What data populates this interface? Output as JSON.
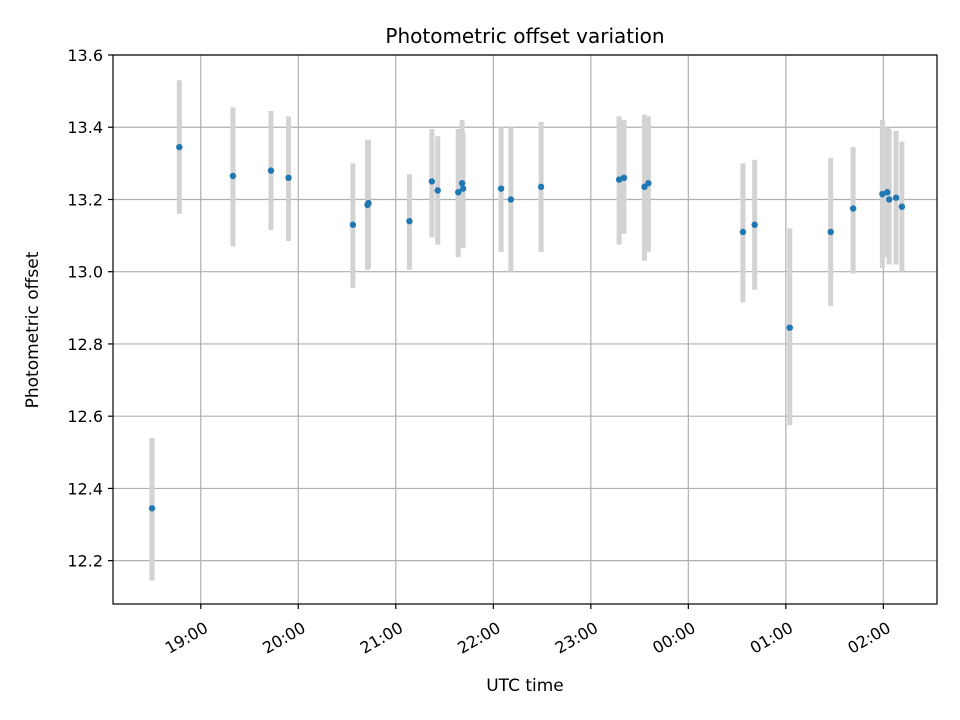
{
  "chart_data": {
    "type": "scatter",
    "title": "Photometric offset variation",
    "xlabel": "UTC time",
    "ylabel": "Photometric offset",
    "grid": true,
    "xlim": [
      18.1,
      26.55
    ],
    "ylim": [
      12.08,
      13.6
    ],
    "x_ticks": [
      {
        "value": 19.0,
        "label": "19:00"
      },
      {
        "value": 20.0,
        "label": "20:00"
      },
      {
        "value": 21.0,
        "label": "21:00"
      },
      {
        "value": 22.0,
        "label": "22:00"
      },
      {
        "value": 23.0,
        "label": "23:00"
      },
      {
        "value": 24.0,
        "label": "00:00"
      },
      {
        "value": 25.0,
        "label": "01:00"
      },
      {
        "value": 26.0,
        "label": "02:00"
      }
    ],
    "y_ticks": [
      {
        "value": 12.2,
        "label": "12.2"
      },
      {
        "value": 12.4,
        "label": "12.4"
      },
      {
        "value": 12.6,
        "label": "12.6"
      },
      {
        "value": 12.8,
        "label": "12.8"
      },
      {
        "value": 13.0,
        "label": "13.0"
      },
      {
        "value": 13.2,
        "label": "13.2"
      },
      {
        "value": 13.4,
        "label": "13.4"
      },
      {
        "value": 13.6,
        "label": "13.6"
      }
    ],
    "colors": {
      "point": "#1f77b4",
      "errorbar": "#d3d3d3",
      "grid": "#b0b0b0",
      "axis": "#000000"
    },
    "points": [
      {
        "x": 18.5,
        "y": 12.345,
        "ylo": 12.145,
        "yhi": 12.54
      },
      {
        "x": 18.78,
        "y": 13.345,
        "ylo": 13.16,
        "yhi": 13.53
      },
      {
        "x": 19.33,
        "y": 13.265,
        "ylo": 13.07,
        "yhi": 13.455
      },
      {
        "x": 19.72,
        "y": 13.28,
        "ylo": 13.115,
        "yhi": 13.445
      },
      {
        "x": 19.9,
        "y": 13.26,
        "ylo": 13.085,
        "yhi": 13.43
      },
      {
        "x": 20.56,
        "y": 13.13,
        "ylo": 12.955,
        "yhi": 13.3
      },
      {
        "x": 20.71,
        "y": 13.185,
        "ylo": 13.005,
        "yhi": 13.365
      },
      {
        "x": 20.72,
        "y": 13.19,
        "ylo": 13.01,
        "yhi": 13.365
      },
      {
        "x": 21.14,
        "y": 13.14,
        "ylo": 13.005,
        "yhi": 13.27
      },
      {
        "x": 21.37,
        "y": 13.25,
        "ylo": 13.095,
        "yhi": 13.395
      },
      {
        "x": 21.43,
        "y": 13.225,
        "ylo": 13.075,
        "yhi": 13.375
      },
      {
        "x": 21.64,
        "y": 13.22,
        "ylo": 13.04,
        "yhi": 13.395
      },
      {
        "x": 21.68,
        "y": 13.245,
        "ylo": 13.07,
        "yhi": 13.42
      },
      {
        "x": 21.69,
        "y": 13.23,
        "ylo": 13.065,
        "yhi": 13.385
      },
      {
        "x": 22.08,
        "y": 13.23,
        "ylo": 13.055,
        "yhi": 13.4
      },
      {
        "x": 22.18,
        "y": 13.2,
        "ylo": 13.0,
        "yhi": 13.4
      },
      {
        "x": 22.49,
        "y": 13.235,
        "ylo": 13.055,
        "yhi": 13.415
      },
      {
        "x": 23.29,
        "y": 13.255,
        "ylo": 13.075,
        "yhi": 13.43
      },
      {
        "x": 23.34,
        "y": 13.26,
        "ylo": 13.105,
        "yhi": 13.42
      },
      {
        "x": 23.55,
        "y": 13.235,
        "ylo": 13.03,
        "yhi": 13.435
      },
      {
        "x": 23.59,
        "y": 13.245,
        "ylo": 13.055,
        "yhi": 13.43
      },
      {
        "x": 24.56,
        "y": 13.11,
        "ylo": 12.915,
        "yhi": 13.3
      },
      {
        "x": 24.68,
        "y": 13.13,
        "ylo": 12.95,
        "yhi": 13.31
      },
      {
        "x": 25.04,
        "y": 12.845,
        "ylo": 12.575,
        "yhi": 13.12
      },
      {
        "x": 25.46,
        "y": 13.11,
        "ylo": 12.905,
        "yhi": 13.315
      },
      {
        "x": 25.69,
        "y": 13.175,
        "ylo": 12.995,
        "yhi": 13.345
      },
      {
        "x": 25.99,
        "y": 13.215,
        "ylo": 13.01,
        "yhi": 13.42
      },
      {
        "x": 26.04,
        "y": 13.22,
        "ylo": 13.04,
        "yhi": 13.4
      },
      {
        "x": 26.06,
        "y": 13.2,
        "ylo": 13.02,
        "yhi": 13.395
      },
      {
        "x": 26.13,
        "y": 13.205,
        "ylo": 13.02,
        "yhi": 13.39
      },
      {
        "x": 26.19,
        "y": 13.18,
        "ylo": 13.0,
        "yhi": 13.36
      }
    ]
  }
}
